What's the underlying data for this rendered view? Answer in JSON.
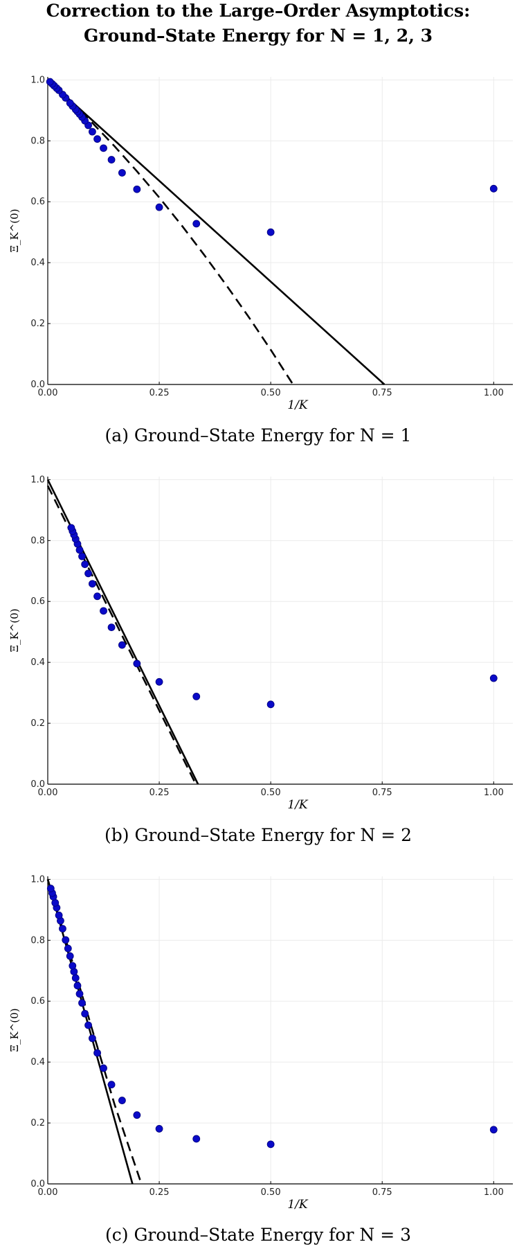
{
  "title_lines": [
    "Correction to the Large–Order Asymptotics:",
    "Ground–State Energy for N = 1, 2, 3"
  ],
  "chart_data": [
    {
      "type": "scatter",
      "caption": "(a) Ground–State Energy for N = 1",
      "xlabel": "1/K",
      "ylabel": "Ξ_K^(0)",
      "grid": true,
      "xlim": [
        0,
        1.043
      ],
      "ylim": [
        0,
        1.01
      ],
      "xticks": [
        {
          "value": 0,
          "label": "0.00"
        },
        {
          "value": 0.25,
          "label": "0.25"
        },
        {
          "value": 0.5,
          "label": "0.50"
        },
        {
          "value": 0.75,
          "label": "0.75"
        },
        {
          "value": 1,
          "label": "1.00"
        }
      ],
      "yticks": [
        {
          "value": 0,
          "label": "0.0"
        },
        0.2,
        0.4,
        0.6,
        0.8,
        {
          "value": 1,
          "label": "1.0"
        }
      ],
      "series": [
        {
          "mode": "markers",
          "color": "#0a0ac8",
          "x": [
            1,
            0.5,
            0.3333,
            0.25,
            0.2,
            0.1667,
            0.1429,
            0.125,
            0.1111,
            0.1,
            0.0909,
            0.0833,
            0.0769,
            0.0714,
            0.0667,
            0.0625,
            0.0556,
            0.05,
            0.04,
            0.0333,
            0.025,
            0.02,
            0.0143,
            0.01,
            0.005
          ],
          "values": [
            0.643,
            0.5,
            0.528,
            0.582,
            0.641,
            0.695,
            0.738,
            0.776,
            0.806,
            0.83,
            0.851,
            0.866,
            0.878,
            0.888,
            0.896,
            0.903,
            0.914,
            0.924,
            0.941,
            0.952,
            0.966,
            0.973,
            0.981,
            0.987,
            0.994
          ]
        },
        {
          "mode": "line",
          "dash": false,
          "color": "#000000",
          "x": [
            0,
            0.755
          ],
          "values": [
            1,
            0
          ]
        },
        {
          "mode": "line",
          "dash": true,
          "color": "#000000",
          "x": [
            0,
            0.05,
            0.1,
            0.15,
            0.2,
            0.25,
            0.3,
            0.35,
            0.4,
            0.45,
            0.5,
            0.55
          ],
          "values": [
            1,
            0.932,
            0.859,
            0.782,
            0.7,
            0.614,
            0.523,
            0.427,
            0.327,
            0.223,
            0.114,
            0
          ]
        }
      ]
    },
    {
      "type": "scatter",
      "caption": "(b) Ground–State Energy for N = 2",
      "xlabel": "1/K",
      "ylabel": "Ξ_K^(0)",
      "grid": true,
      "xlim": [
        0,
        1.043
      ],
      "ylim": [
        0,
        1.01
      ],
      "xticks": [
        {
          "value": 0,
          "label": "0.00"
        },
        {
          "value": 0.25,
          "label": "0.25"
        },
        {
          "value": 0.5,
          "label": "0.50"
        },
        {
          "value": 0.75,
          "label": "0.75"
        },
        {
          "value": 1,
          "label": "1.00"
        }
      ],
      "yticks": [
        {
          "value": 0,
          "label": "0.0"
        },
        0.2,
        0.4,
        0.6,
        0.8,
        {
          "value": 1,
          "label": "1.0"
        }
      ],
      "series": [
        {
          "mode": "markers",
          "color": "#0a0ac8",
          "x": [
            1,
            0.5,
            0.3333,
            0.25,
            0.2,
            0.1667,
            0.1429,
            0.125,
            0.1111,
            0.1,
            0.0909,
            0.0833,
            0.0769,
            0.0714,
            0.0667,
            0.0625,
            0.0588,
            0.0556,
            0.0526
          ],
          "values": [
            0.348,
            0.262,
            0.288,
            0.336,
            0.396,
            0.457,
            0.515,
            0.569,
            0.617,
            0.658,
            0.692,
            0.722,
            0.748,
            0.769,
            0.789,
            0.805,
            0.819,
            0.831,
            0.842
          ]
        },
        {
          "mode": "line",
          "dash": false,
          "color": "#000000",
          "x": [
            0,
            0.337
          ],
          "values": [
            1,
            0
          ]
        },
        {
          "mode": "line",
          "dash": true,
          "color": "#000000",
          "x": [
            0,
            0.332
          ],
          "values": [
            0.98,
            0
          ]
        }
      ]
    },
    {
      "type": "scatter",
      "caption": "(c) Ground–State Energy for N = 3",
      "xlabel": "1/K",
      "ylabel": "Ξ_K^(0)",
      "grid": true,
      "xlim": [
        0,
        1.043
      ],
      "ylim": [
        0,
        1.01
      ],
      "xticks": [
        {
          "value": 0,
          "label": "0.00"
        },
        {
          "value": 0.25,
          "label": "0.25"
        },
        {
          "value": 0.5,
          "label": "0.50"
        },
        {
          "value": 0.75,
          "label": "0.75"
        },
        {
          "value": 1,
          "label": "1.00"
        }
      ],
      "yticks": [
        {
          "value": 0,
          "label": "0.0"
        },
        0.2,
        0.4,
        0.6,
        0.8,
        {
          "value": 1,
          "label": "1.0"
        }
      ],
      "series": [
        {
          "mode": "markers",
          "color": "#0a0ac8",
          "x": [
            1,
            0.5,
            0.3333,
            0.25,
            0.2,
            0.1667,
            0.1429,
            0.125,
            0.1111,
            0.1,
            0.0909,
            0.0833,
            0.0769,
            0.0714,
            0.0667,
            0.0625,
            0.0588,
            0.0556,
            0.05,
            0.0455,
            0.04,
            0.0333,
            0.0286,
            0.025,
            0.02,
            0.0167,
            0.0125,
            0.01,
            0.0067
          ],
          "values": [
            0.178,
            0.13,
            0.148,
            0.181,
            0.226,
            0.274,
            0.326,
            0.38,
            0.43,
            0.478,
            0.521,
            0.559,
            0.594,
            0.624,
            0.651,
            0.676,
            0.697,
            0.716,
            0.748,
            0.773,
            0.801,
            0.838,
            0.864,
            0.882,
            0.907,
            0.923,
            0.943,
            0.955,
            0.97
          ]
        },
        {
          "mode": "line",
          "dash": false,
          "color": "#000000",
          "x": [
            0,
            0.19
          ],
          "values": [
            1,
            0
          ]
        },
        {
          "mode": "line",
          "dash": true,
          "color": "#000000",
          "x": [
            0,
            0.05,
            0.1,
            0.15,
            0.21
          ],
          "values": [
            1,
            0.755,
            0.505,
            0.26,
            0
          ]
        }
      ]
    }
  ]
}
